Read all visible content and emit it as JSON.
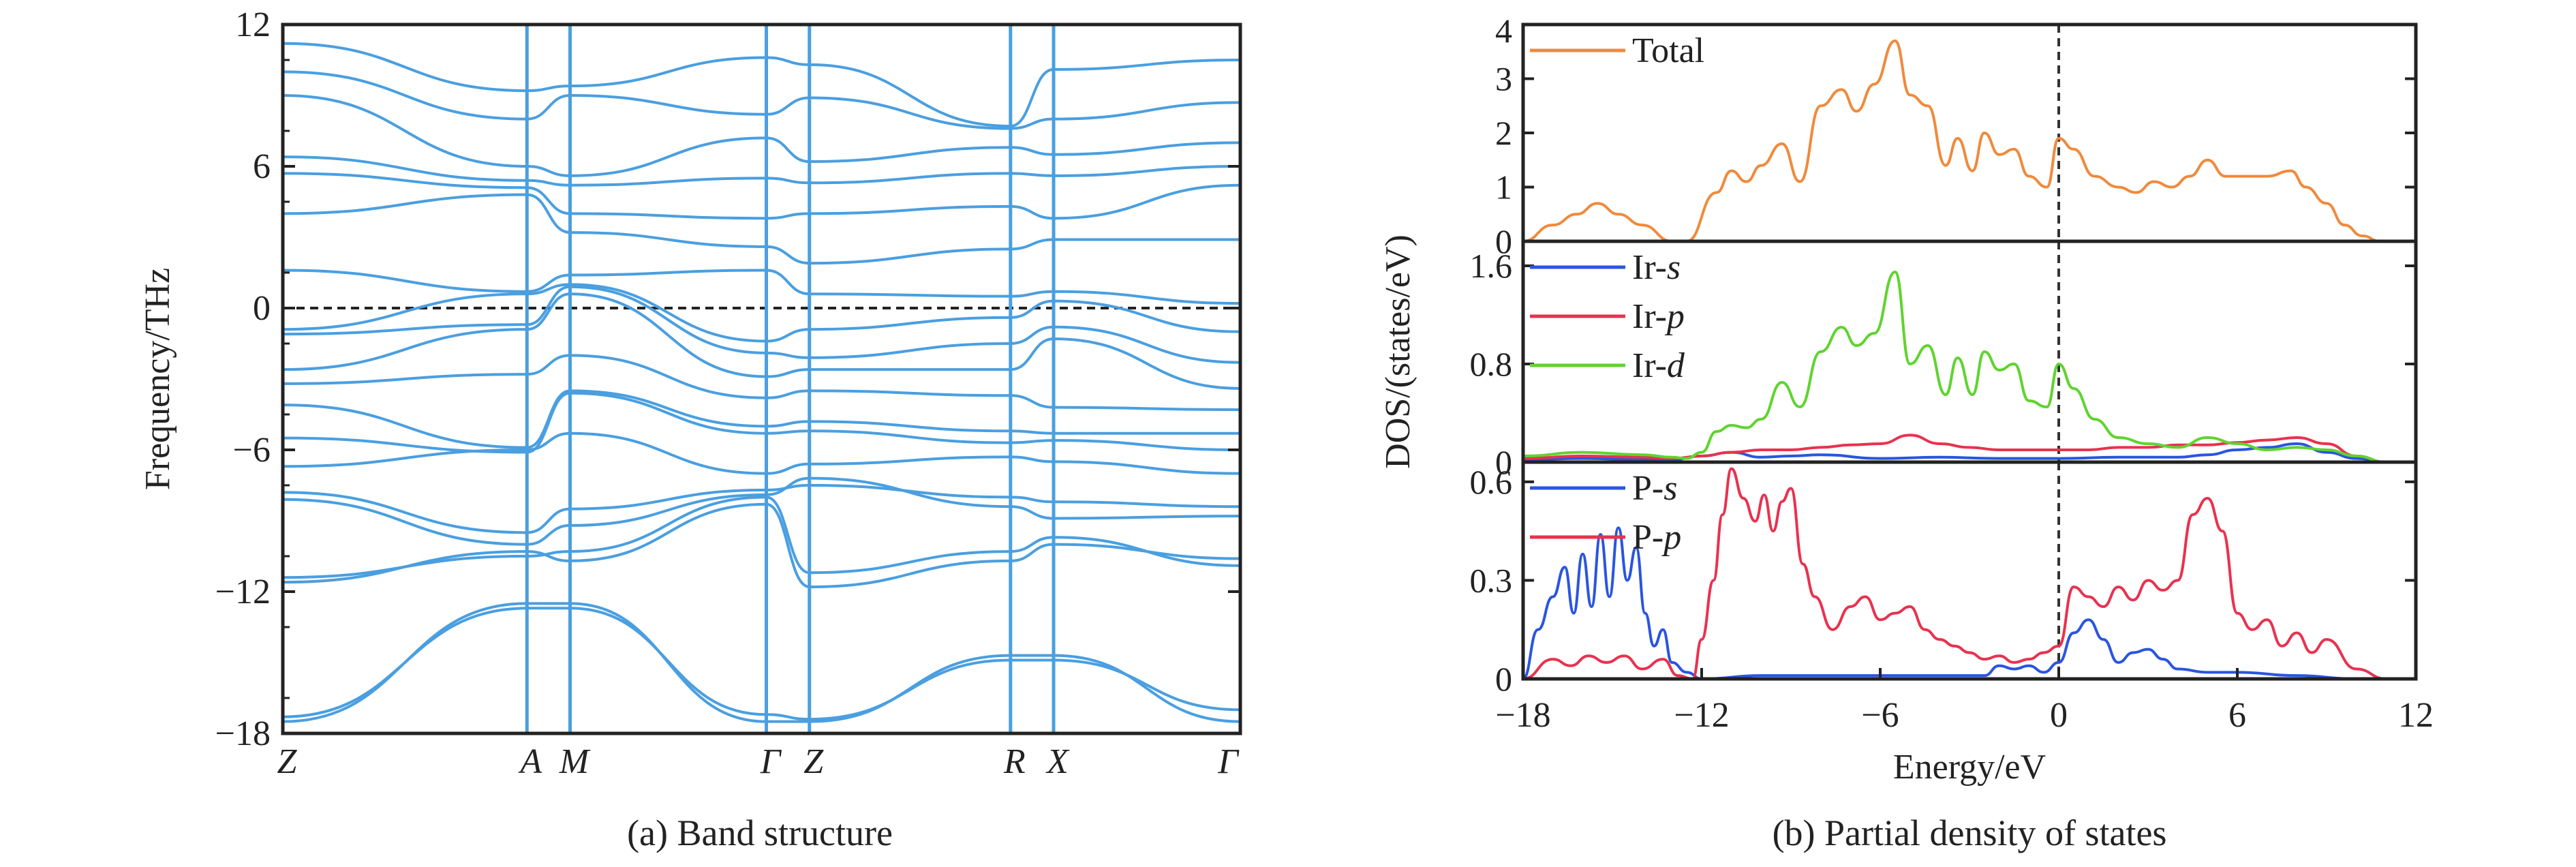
{
  "figure": {
    "captions": {
      "a": "(a) Band structure",
      "b": "(b) Partial density of states"
    }
  },
  "chart_data": [
    {
      "id": "band",
      "type": "line",
      "ylabel": "Frequency/THz",
      "ylim": [
        -18,
        12
      ],
      "yticks": [
        -18,
        -12,
        -6,
        0,
        6,
        12
      ],
      "ytick_labels": [
        "−18",
        "−12",
        "−6",
        "0",
        "6",
        "12"
      ],
      "xlim": [
        0,
        10
      ],
      "kpoints": [
        {
          "label": "Z",
          "x": 0
        },
        {
          "label": "A",
          "x": 2.55
        },
        {
          "label": "M",
          "x": 3.0
        },
        {
          "label": "Γ",
          "x": 5.05
        },
        {
          "label": "Z",
          "x": 5.5
        },
        {
          "label": "R",
          "x": 7.6
        },
        {
          "label": "X",
          "x": 8.05
        },
        {
          "label": "Γ",
          "x": 10.0
        }
      ],
      "zero_line": 0,
      "line_color": "#4a9fe0",
      "series": [
        {
          "x": [
            0,
            2.55,
            3.0,
            5.05,
            5.5,
            7.6,
            8.05,
            10
          ],
          "y": [
            -17.5,
            -12.5,
            -12.5,
            -17.5,
            -17.5,
            -14.7,
            -14.7,
            -17.5
          ]
        },
        {
          "x": [
            0,
            2.55,
            3.0,
            5.05,
            5.5,
            7.6,
            8.05,
            10
          ],
          "y": [
            -17.3,
            -12.7,
            -12.7,
            -17.2,
            -17.4,
            -14.9,
            -14.9,
            -17.0
          ]
        },
        {
          "x": [
            0,
            2.55,
            3.0,
            5.05,
            5.5,
            7.6,
            8.05,
            10
          ],
          "y": [
            -11.6,
            -10.3,
            -10.7,
            -8.3,
            -11.8,
            -10.7,
            -10.0,
            -10.6
          ]
        },
        {
          "x": [
            0,
            2.55,
            3.0,
            5.05,
            5.5,
            7.6,
            8.05,
            10
          ],
          "y": [
            -11.4,
            -10.5,
            -10.3,
            -8.0,
            -11.2,
            -10.3,
            -9.7,
            -10.9
          ]
        },
        {
          "x": [
            0,
            2.55,
            3.0,
            5.05,
            5.5,
            7.6,
            8.05,
            10
          ],
          "y": [
            -8.1,
            -10.0,
            -9.2,
            -7.9,
            -7.2,
            -8.4,
            -8.9,
            -8.8
          ]
        },
        {
          "x": [
            0,
            2.55,
            3.0,
            5.05,
            5.5,
            7.6,
            8.05,
            10
          ],
          "y": [
            -7.8,
            -9.5,
            -8.5,
            -7.7,
            -7.5,
            -8.0,
            -8.2,
            -8.4
          ]
        },
        {
          "x": [
            0,
            2.55,
            3.0,
            5.05,
            5.5,
            7.6,
            8.05,
            10
          ],
          "y": [
            -6.7,
            -6.0,
            -5.3,
            -7.0,
            -6.6,
            -6.3,
            -6.5,
            -7.0
          ]
        },
        {
          "x": [
            0,
            2.55,
            3.0,
            5.05,
            5.5,
            7.6,
            8.05,
            10
          ],
          "y": [
            -5.5,
            -6.1,
            -3.6,
            -5.3,
            -5.2,
            -5.7,
            -5.6,
            -6.0
          ]
        },
        {
          "x": [
            0,
            2.55,
            3.0,
            5.05,
            5.5,
            7.6,
            8.05,
            10
          ],
          "y": [
            -4.1,
            -5.9,
            -3.5,
            -5.0,
            -4.8,
            -5.2,
            -5.3,
            -5.3
          ]
        },
        {
          "x": [
            0,
            2.55,
            3.0,
            5.05,
            5.5,
            7.6,
            8.05,
            10
          ],
          "y": [
            -3.2,
            -2.8,
            -2.0,
            -3.8,
            -3.5,
            -3.7,
            -4.2,
            -4.3
          ]
        },
        {
          "x": [
            0,
            2.55,
            3.0,
            5.05,
            5.5,
            7.6,
            8.05,
            10
          ],
          "y": [
            -2.6,
            -0.9,
            0.6,
            -2.9,
            -2.6,
            -2.6,
            -1.3,
            -3.4
          ]
        },
        {
          "x": [
            0,
            2.55,
            3.0,
            5.05,
            5.5,
            7.6,
            8.05,
            10
          ],
          "y": [
            -1.1,
            -0.7,
            0.9,
            -1.9,
            -2.1,
            -1.5,
            -0.8,
            -2.3
          ]
        },
        {
          "x": [
            0,
            2.55,
            3.0,
            5.05,
            5.5,
            7.6,
            8.05,
            10
          ],
          "y": [
            -0.9,
            0.6,
            1.0,
            -1.4,
            -0.9,
            -0.4,
            0.3,
            -1.0
          ]
        },
        {
          "x": [
            0,
            2.55,
            3.0,
            5.05,
            5.5,
            7.6,
            8.05,
            10
          ],
          "y": [
            1.6,
            0.7,
            1.4,
            1.6,
            0.6,
            0.5,
            0.7,
            0.2
          ]
        },
        {
          "x": [
            0,
            2.55,
            3.0,
            5.05,
            5.5,
            7.6,
            8.05,
            10
          ],
          "y": [
            4.0,
            4.8,
            3.2,
            2.6,
            1.9,
            2.5,
            2.9,
            2.9
          ]
        },
        {
          "x": [
            0,
            2.55,
            3.0,
            5.05,
            5.5,
            7.6,
            8.05,
            10
          ],
          "y": [
            5.7,
            5.1,
            4.0,
            3.8,
            4.0,
            4.3,
            3.8,
            5.2
          ]
        },
        {
          "x": [
            0,
            2.55,
            3.0,
            5.05,
            5.5,
            7.6,
            8.05,
            10
          ],
          "y": [
            6.4,
            5.4,
            5.2,
            5.5,
            5.3,
            5.7,
            5.6,
            6.0
          ]
        },
        {
          "x": [
            0,
            2.55,
            3.0,
            5.05,
            5.5,
            7.6,
            8.05,
            10
          ],
          "y": [
            9.0,
            6.0,
            5.6,
            7.2,
            6.2,
            6.8,
            6.5,
            7.0
          ]
        },
        {
          "x": [
            0,
            2.55,
            3.0,
            5.05,
            5.5,
            7.6,
            8.05,
            10
          ],
          "y": [
            10.0,
            8.0,
            9.0,
            8.2,
            8.9,
            7.6,
            8.0,
            8.7
          ]
        },
        {
          "x": [
            0,
            2.55,
            3.0,
            5.05,
            5.5,
            7.6,
            8.05,
            10
          ],
          "y": [
            11.2,
            9.2,
            9.4,
            10.6,
            10.3,
            7.7,
            10.1,
            10.5
          ]
        }
      ]
    },
    {
      "id": "dos-total",
      "type": "line",
      "xlim": [
        -18,
        12
      ],
      "ylim": [
        0,
        4
      ],
      "yticks": [
        0,
        1,
        2,
        3,
        4
      ],
      "ytick_labels": [
        "0",
        "1",
        "2",
        "3",
        "4"
      ],
      "fermi": 0,
      "series": [
        {
          "name": "Total",
          "color": "#f08a3c",
          "x": [
            -18,
            -17,
            -16.2,
            -15.5,
            -14.8,
            -14,
            -13,
            -12.5,
            -11.5,
            -11,
            -10.5,
            -10,
            -9.3,
            -8.7,
            -8,
            -7.3,
            -6.8,
            -6.2,
            -5.5,
            -5,
            -4.4,
            -3.8,
            -3.4,
            -2.9,
            -2.5,
            -2,
            -1.5,
            -1,
            -0.4,
            0,
            0.5,
            1.2,
            2,
            2.6,
            3.2,
            3.8,
            4.4,
            5,
            5.6,
            6.2,
            7,
            7.8,
            8.3,
            9,
            9.6,
            10.2,
            10.8,
            12
          ],
          "y": [
            0.0,
            0.3,
            0.5,
            0.7,
            0.5,
            0.3,
            0.0,
            0.0,
            0.9,
            1.3,
            1.1,
            1.4,
            1.8,
            1.1,
            2.5,
            2.8,
            2.4,
            2.9,
            3.7,
            2.7,
            2.5,
            1.4,
            1.9,
            1.3,
            2.0,
            1.6,
            1.7,
            1.2,
            1.0,
            1.9,
            1.7,
            1.2,
            1.0,
            0.9,
            1.1,
            1.0,
            1.2,
            1.5,
            1.2,
            1.2,
            1.2,
            1.3,
            1.0,
            0.7,
            0.3,
            0.1,
            0.0,
            0.0
          ]
        }
      ]
    },
    {
      "id": "dos-ir",
      "type": "line",
      "xlim": [
        -18,
        12
      ],
      "ylim": [
        0,
        1.8
      ],
      "yticks": [
        0,
        0.8,
        1.6
      ],
      "ytick_labels": [
        "0",
        "0.8",
        "1.6"
      ],
      "fermi": 0,
      "series": [
        {
          "name": "Ir-s",
          "color": "#2a55e0",
          "x": [
            -18,
            -16,
            -14,
            -13,
            -12,
            -11,
            -10,
            -9,
            -8,
            -6,
            -4,
            -2,
            0,
            2,
            4,
            5,
            6,
            7,
            8,
            9,
            10,
            11,
            12
          ],
          "y": [
            0.02,
            0.03,
            0.02,
            0.02,
            0.05,
            0.08,
            0.04,
            0.05,
            0.06,
            0.03,
            0.04,
            0.03,
            0.03,
            0.04,
            0.04,
            0.06,
            0.1,
            0.12,
            0.15,
            0.08,
            0.03,
            0.0,
            0.0
          ]
        },
        {
          "name": "Ir-p",
          "color": "#e8324f",
          "x": [
            -18,
            -16,
            -14,
            -13,
            -12,
            -11,
            -10,
            -9,
            -8,
            -7,
            -6,
            -5,
            -4,
            -3,
            -2,
            -1,
            0,
            1,
            2,
            3,
            4,
            5,
            6,
            7,
            8,
            9,
            10,
            11,
            12
          ],
          "y": [
            0.03,
            0.05,
            0.04,
            0.03,
            0.05,
            0.08,
            0.1,
            0.1,
            0.12,
            0.14,
            0.15,
            0.22,
            0.15,
            0.12,
            0.1,
            0.1,
            0.1,
            0.1,
            0.12,
            0.12,
            0.14,
            0.14,
            0.16,
            0.18,
            0.2,
            0.15,
            0.05,
            0.0,
            0.0
          ]
        },
        {
          "name": "Ir-d",
          "color": "#5fd42f",
          "x": [
            -18,
            -16,
            -14,
            -13,
            -12.5,
            -12,
            -11.5,
            -11,
            -10.5,
            -10,
            -9.3,
            -8.7,
            -8,
            -7.3,
            -6.8,
            -6.2,
            -5.5,
            -5,
            -4.4,
            -3.8,
            -3.4,
            -2.9,
            -2.5,
            -2,
            -1.5,
            -1,
            -0.4,
            0,
            0.5,
            1.2,
            2,
            3,
            4,
            5,
            6,
            7,
            8,
            9,
            10,
            11,
            12
          ],
          "y": [
            0.05,
            0.08,
            0.06,
            0.04,
            0.03,
            0.08,
            0.25,
            0.3,
            0.28,
            0.35,
            0.65,
            0.45,
            0.9,
            1.1,
            0.95,
            1.05,
            1.55,
            0.8,
            0.95,
            0.55,
            0.85,
            0.55,
            0.9,
            0.75,
            0.8,
            0.5,
            0.45,
            0.8,
            0.6,
            0.35,
            0.2,
            0.15,
            0.12,
            0.2,
            0.15,
            0.1,
            0.12,
            0.1,
            0.05,
            0.0,
            0.0
          ]
        }
      ]
    },
    {
      "id": "dos-p",
      "type": "line",
      "xlim": [
        -18,
        12
      ],
      "ylim": [
        0,
        0.66
      ],
      "yticks": [
        0,
        0.3,
        0.6
      ],
      "ytick_labels": [
        "0",
        "0.3",
        "0.6"
      ],
      "xticks": [
        -18,
        -12,
        -6,
        0,
        6,
        12
      ],
      "xtick_labels": [
        "−18",
        "−12",
        "−6",
        "0",
        "6",
        "12"
      ],
      "xlabel": "Energy/eV",
      "fermi": 0,
      "series": [
        {
          "name": "P-s",
          "color": "#2a55e0",
          "x": [
            -18,
            -17.5,
            -17,
            -16.6,
            -16.3,
            -16,
            -15.7,
            -15.4,
            -15.1,
            -14.8,
            -14.5,
            -14.2,
            -13.9,
            -13.6,
            -13.3,
            -13,
            -12.5,
            -12,
            -10,
            -8,
            -6,
            -4,
            -2.5,
            -2,
            -1.5,
            -1,
            -0.5,
            0,
            0.5,
            1,
            1.5,
            2,
            2.5,
            3,
            3.5,
            4,
            5,
            6,
            8,
            10,
            12
          ],
          "y": [
            0.0,
            0.15,
            0.25,
            0.34,
            0.2,
            0.38,
            0.22,
            0.44,
            0.25,
            0.46,
            0.3,
            0.4,
            0.2,
            0.1,
            0.15,
            0.05,
            0.02,
            0.0,
            0.01,
            0.01,
            0.01,
            0.01,
            0.01,
            0.04,
            0.03,
            0.04,
            0.02,
            0.05,
            0.14,
            0.18,
            0.12,
            0.05,
            0.08,
            0.09,
            0.06,
            0.03,
            0.02,
            0.02,
            0.01,
            0.0,
            0.0
          ]
        },
        {
          "name": "P-p",
          "color": "#e8324f",
          "x": [
            -18,
            -17,
            -16.4,
            -15.8,
            -15.2,
            -14.6,
            -14,
            -13.3,
            -12.8,
            -12.3,
            -12,
            -11.6,
            -11.3,
            -11,
            -10.6,
            -10.2,
            -9.9,
            -9.6,
            -9.3,
            -9,
            -8.6,
            -8.2,
            -7.6,
            -7,
            -6.5,
            -6,
            -5.5,
            -5,
            -4.5,
            -4,
            -3.5,
            -3,
            -2.5,
            -2,
            -1.5,
            -1,
            -0.5,
            0,
            0.5,
            1,
            1.5,
            2,
            2.5,
            3,
            3.5,
            4,
            4.5,
            5,
            5.5,
            6,
            6.5,
            7,
            7.5,
            8,
            8.5,
            9,
            10,
            11,
            12
          ],
          "y": [
            0.0,
            0.06,
            0.04,
            0.07,
            0.05,
            0.07,
            0.03,
            0.06,
            0.01,
            0.0,
            0.12,
            0.3,
            0.5,
            0.64,
            0.55,
            0.48,
            0.56,
            0.45,
            0.54,
            0.58,
            0.35,
            0.25,
            0.15,
            0.22,
            0.25,
            0.18,
            0.2,
            0.22,
            0.15,
            0.12,
            0.1,
            0.08,
            0.06,
            0.07,
            0.05,
            0.06,
            0.08,
            0.1,
            0.28,
            0.25,
            0.22,
            0.28,
            0.24,
            0.3,
            0.27,
            0.3,
            0.5,
            0.55,
            0.45,
            0.2,
            0.15,
            0.18,
            0.1,
            0.14,
            0.08,
            0.12,
            0.03,
            0.0,
            0.0
          ]
        }
      ]
    }
  ]
}
